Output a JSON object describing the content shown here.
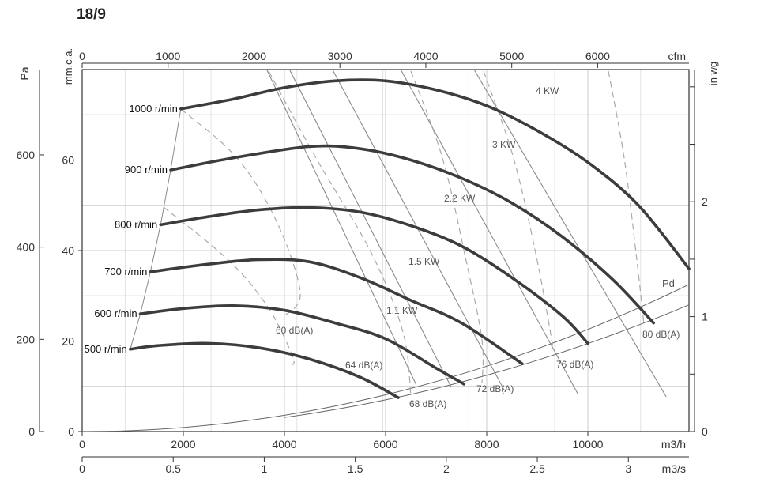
{
  "chart_data": {
    "type": "line",
    "title": "18/9",
    "axes": {
      "x_bottom_primary": {
        "unit": "m3/h",
        "range": [
          0,
          12000
        ],
        "ticks": [
          "0",
          "2000",
          "4000",
          "6000",
          "8000",
          "10000"
        ]
      },
      "x_bottom_secondary": {
        "unit": "m3/s",
        "range": [
          0,
          3.333
        ],
        "ticks": [
          "0",
          "0.5",
          "1",
          "1.5",
          "2",
          "2.5",
          "3"
        ]
      },
      "x_top": {
        "unit": "cfm",
        "range": [
          0,
          7063
        ],
        "ticks": [
          "0",
          "1000",
          "2000",
          "3000",
          "4000",
          "5000",
          "6000"
        ]
      },
      "y_left_outer": {
        "unit": "Pa",
        "range": [
          0,
          785
        ],
        "ticks": [
          "0",
          "200",
          "400",
          "600"
        ]
      },
      "y_left_inner": {
        "unit": "mm.c.a.",
        "range": [
          0,
          80
        ],
        "ticks": [
          "0",
          "20",
          "40",
          "60"
        ]
      },
      "y_right": {
        "unit": "in wg",
        "range": [
          0,
          3.15
        ],
        "ticks": [
          "0",
          "1",
          "2"
        ]
      }
    },
    "grid": true,
    "series": [
      {
        "name": "500 r/min",
        "x": [
          950,
          1500,
          2500,
          3500,
          4500,
          5500,
          6250
        ],
        "y": [
          18.2,
          19.0,
          19.5,
          18.5,
          16.0,
          12.0,
          7.5
        ]
      },
      {
        "name": "600 r/min",
        "x": [
          1150,
          2000,
          3000,
          4000,
          5000,
          6000,
          7000,
          7550
        ],
        "y": [
          26.0,
          27.2,
          27.8,
          26.8,
          24.0,
          20.5,
          14.0,
          10.5
        ]
      },
      {
        "name": "700 r/min",
        "x": [
          1350,
          2500,
          3500,
          4500,
          5500,
          6500,
          7500,
          8700
        ],
        "y": [
          35.3,
          37.0,
          38.0,
          37.5,
          34.0,
          29.0,
          24.0,
          15.0
        ]
      },
      {
        "name": "800 r/min",
        "x": [
          1550,
          2500,
          3500,
          4500,
          5500,
          6500,
          7500,
          8500,
          9500,
          10000
        ],
        "y": [
          45.7,
          47.5,
          49.0,
          49.5,
          48.5,
          45.5,
          41.0,
          34.0,
          25.5,
          19.5
        ]
      },
      {
        "name": "900 r/min",
        "x": [
          1750,
          3000,
          4500,
          5500,
          6500,
          7500,
          8500,
          9500,
          10500,
          11300
        ],
        "y": [
          57.8,
          60.5,
          63.0,
          62.5,
          60.0,
          56.0,
          50.5,
          43.0,
          33.5,
          24.0
        ]
      },
      {
        "name": "1000 r/min",
        "x": [
          1950,
          3000,
          4000,
          5000,
          6000,
          7000,
          8000,
          9000,
          10000,
          11000,
          12000
        ],
        "y": [
          71.3,
          73.5,
          76.0,
          77.5,
          77.5,
          75.5,
          72.0,
          66.5,
          59.5,
          50.0,
          36.0
        ]
      }
    ],
    "pressure_curve": {
      "name": "Pd",
      "x": [
        0,
        12000
      ],
      "y_at_max": 32.5
    },
    "power_lines": [
      {
        "label": "1.1 KW",
        "x_top": 3650,
        "x_bottom": 6600
      },
      {
        "label": "1.5 KW",
        "x_top": 4100,
        "x_bottom": 7300
      },
      {
        "label": "2.2 KW",
        "x_top": 4950,
        "x_bottom": 8350
      },
      {
        "label": "3 KW",
        "x_top": 6300,
        "x_bottom": 9800
      },
      {
        "label": "4 KW",
        "x_top": 7750,
        "x_bottom": 11550
      }
    ],
    "noise_lines": [
      {
        "label": "60 dB(A)"
      },
      {
        "label": "64 dB(A)"
      },
      {
        "label": "68 dB(A)"
      },
      {
        "label": "72 dB(A)"
      },
      {
        "label": "76 dB(A)"
      },
      {
        "label": "80 dB(A)"
      }
    ],
    "colors": {
      "curve": "#3c3c3c",
      "grid": "#cccccc",
      "aux": "#8a8a8a",
      "text": "#333333"
    }
  }
}
